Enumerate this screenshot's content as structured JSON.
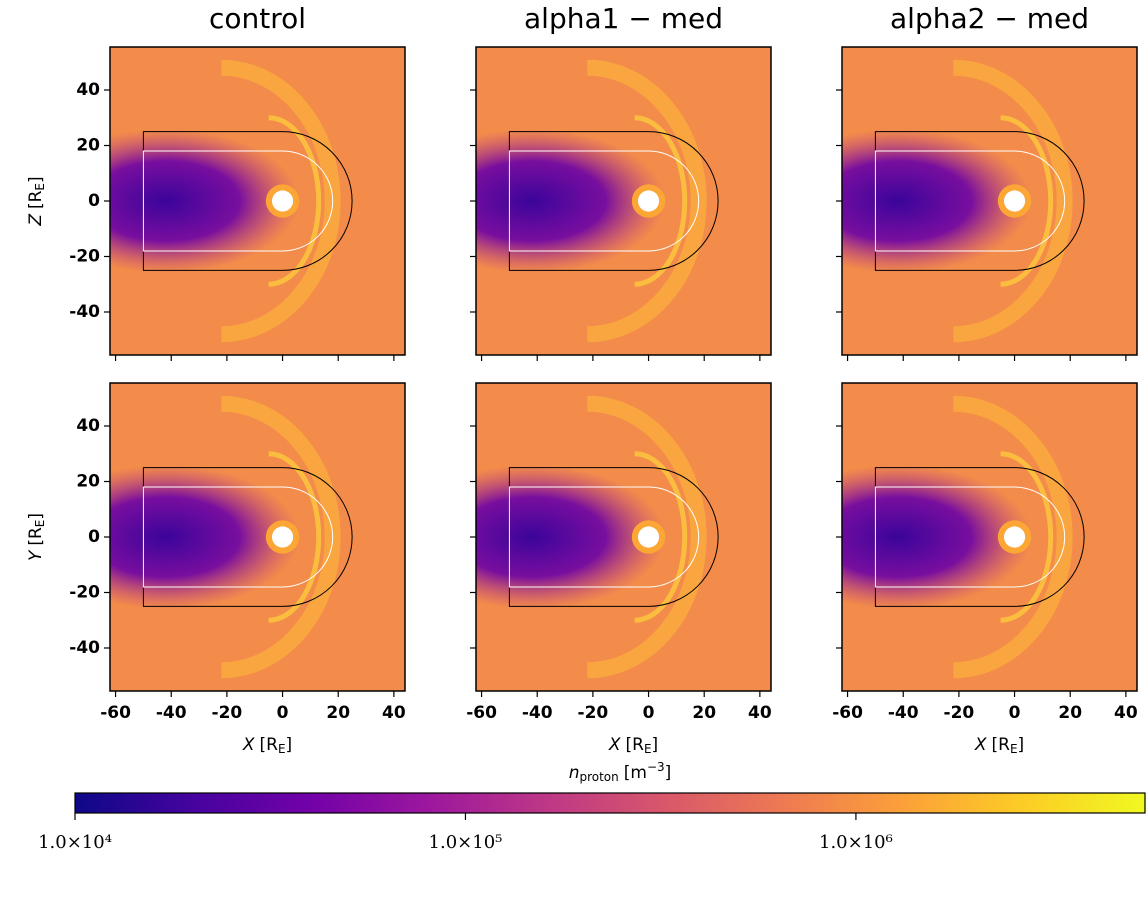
{
  "chart_data": [
    {
      "type": "heatmap",
      "title": "control",
      "xlim": [
        -62,
        44
      ],
      "ylim": [
        -55.5,
        55.5
      ],
      "xticks": [
        -60,
        -40,
        -20,
        0,
        20,
        40
      ],
      "yticks": [
        -40,
        -20,
        0,
        20,
        40
      ],
      "show_xticklabels": false,
      "show_yticklabels": true,
      "ylabel": {
        "var": "Z",
        "unit": "[R",
        "sub": "E",
        "close": "]"
      }
    },
    {
      "type": "heatmap",
      "title": "alpha1 − med",
      "xlim": [
        -62,
        44
      ],
      "ylim": [
        -55.5,
        55.5
      ],
      "xticks": [
        -60,
        -40,
        -20,
        0,
        20,
        40
      ],
      "yticks": [
        -40,
        -20,
        0,
        20,
        40
      ],
      "show_xticklabels": false,
      "show_yticklabels": false
    },
    {
      "type": "heatmap",
      "title": "alpha2 − med",
      "xlim": [
        -62,
        44
      ],
      "ylim": [
        -55.5,
        55.5
      ],
      "xticks": [
        -60,
        -40,
        -20,
        0,
        20,
        40
      ],
      "yticks": [
        -40,
        -20,
        0,
        20,
        40
      ],
      "show_xticklabels": false,
      "show_yticklabels": false
    },
    {
      "type": "heatmap",
      "xlim": [
        -62,
        44
      ],
      "ylim": [
        -55.5,
        55.5
      ],
      "xticks": [
        -60,
        -40,
        -20,
        0,
        20,
        40
      ],
      "yticks": [
        -40,
        -20,
        0,
        20,
        40
      ],
      "show_xticklabels": true,
      "show_yticklabels": true,
      "ylabel": {
        "var": "Y",
        "unit": "[R",
        "sub": "E",
        "close": "]"
      },
      "xlabel": {
        "var": "X",
        "unit": "[R",
        "sub": "E",
        "close": "]"
      }
    },
    {
      "type": "heatmap",
      "xlim": [
        -62,
        44
      ],
      "ylim": [
        -55.5,
        55.5
      ],
      "xticks": [
        -60,
        -40,
        -20,
        0,
        20,
        40
      ],
      "yticks": [
        -40,
        -20,
        0,
        20,
        40
      ],
      "show_xticklabels": true,
      "show_yticklabels": false,
      "xlabel": {
        "var": "X",
        "unit": "[R",
        "sub": "E",
        "close": "]"
      }
    },
    {
      "type": "heatmap",
      "xlim": [
        -62,
        44
      ],
      "ylim": [
        -55.5,
        55.5
      ],
      "xticks": [
        -60,
        -40,
        -20,
        0,
        20,
        40
      ],
      "yticks": [
        -40,
        -20,
        0,
        20,
        40
      ],
      "show_xticklabels": true,
      "show_yticklabels": false,
      "xlabel": {
        "var": "X",
        "unit": "[R",
        "sub": "E",
        "close": "]"
      }
    }
  ],
  "colorbar": {
    "label": {
      "var": "n",
      "sub": "proton",
      "unit": "[m",
      "sup": "−3",
      "close": "]"
    },
    "scale": "log",
    "lim": [
      10000,
      5500000
    ],
    "ticks": [
      {
        "value": 10000,
        "label": "1.0×10⁴"
      },
      {
        "value": 100000,
        "label": "1.0×10⁵"
      },
      {
        "value": 1000000,
        "label": "1.0×10⁶"
      }
    ]
  }
}
